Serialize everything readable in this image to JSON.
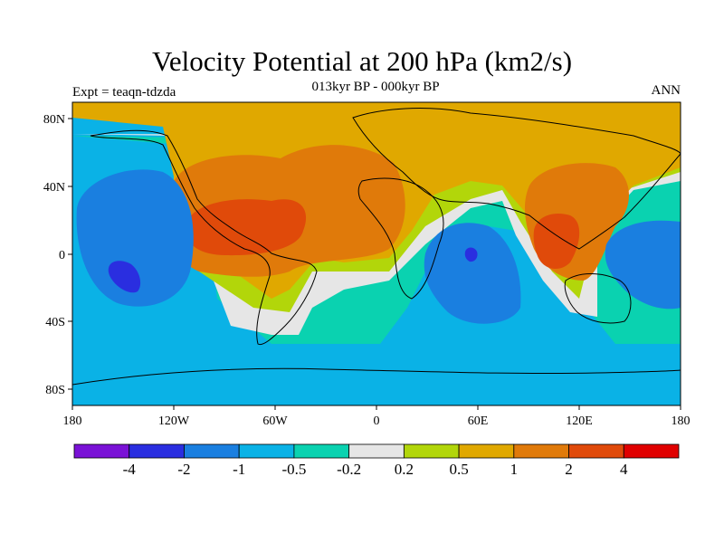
{
  "title": "Velocity Potential at 200 hPa (km2/s)",
  "subtitle": "013kyr BP - 000kyr BP",
  "left_label": "Expt = teaqn-tdzda",
  "right_label": "ANN",
  "map": {
    "projection": "cylindrical equidistant",
    "lon_range": [
      -180,
      180
    ],
    "lat_range": [
      -90,
      90
    ],
    "x_ticks": [
      "180",
      "120W",
      "60W",
      "0",
      "60E",
      "120E",
      "180"
    ],
    "y_ticks": [
      "80N",
      "40N",
      "0",
      "40S",
      "80S"
    ]
  },
  "colorbar": {
    "colors": [
      "#7a12d6",
      "#2a2ee0",
      "#1a7fe0",
      "#0ab2e6",
      "#0ad2b0",
      "#e6e6e6",
      "#b2d60a",
      "#e0a800",
      "#e07a0a",
      "#e04a0a",
      "#e00000"
    ],
    "labels": [
      "-4",
      "-2",
      "-1",
      "-0.5",
      "-0.2",
      "0.2",
      "0.5",
      "1",
      "2",
      "4"
    ]
  },
  "colors": {
    "purple": "#7a12d6",
    "blue": "#2a2ee0",
    "mid_blue": "#1a7fe0",
    "cyan": "#0ab2e6",
    "teal": "#0ad2b0",
    "white": "#e6e6e6",
    "lime": "#b2d60a",
    "gold": "#e0a800",
    "orange": "#e07a0a",
    "red_orange": "#e04a0a"
  }
}
